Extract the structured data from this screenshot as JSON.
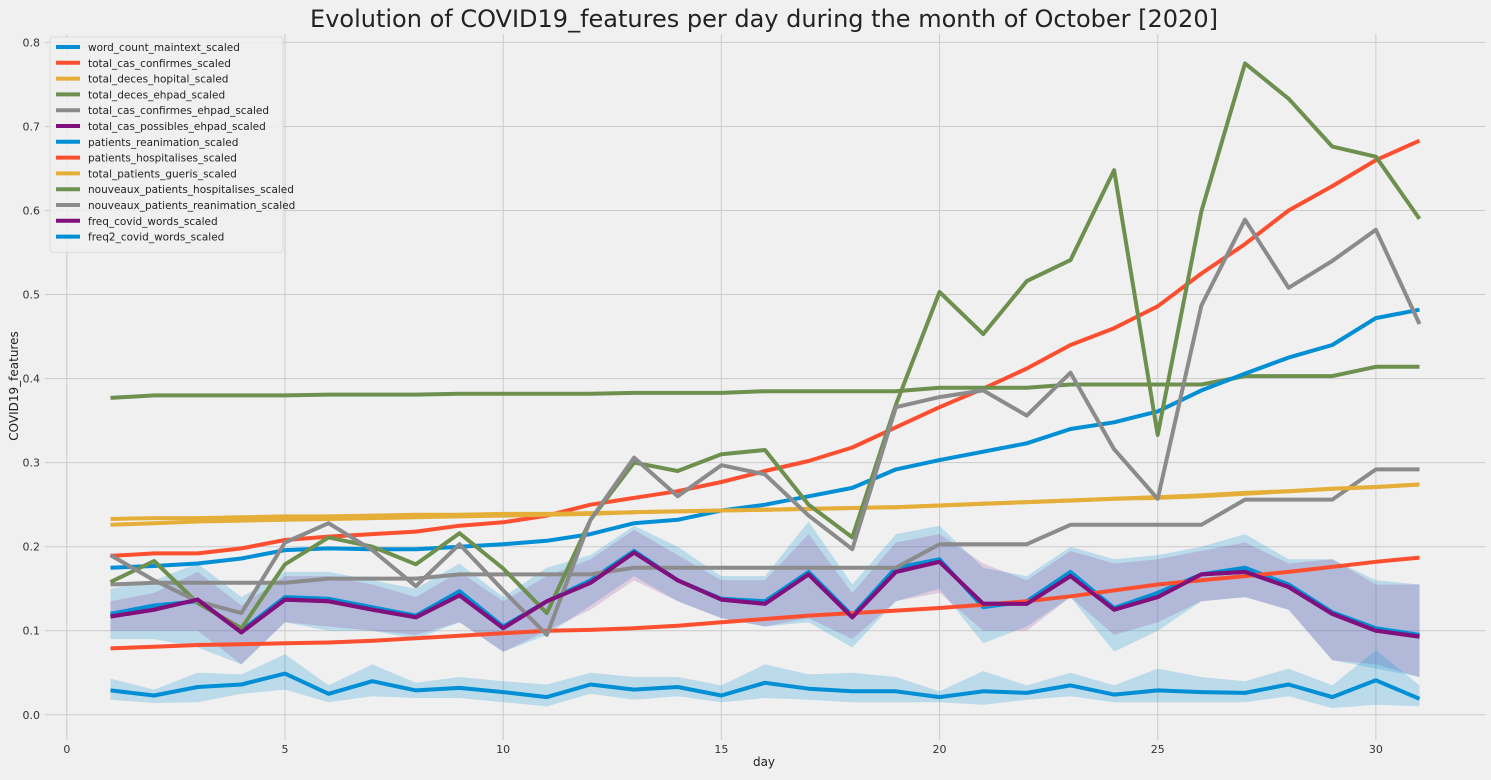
{
  "chart_data": {
    "type": "line",
    "title": "Evolution of COVID19_features per day during the month of October [2020]",
    "xlabel": "day",
    "ylabel": "COVID19_features",
    "xlim": [
      -0.5,
      32.5
    ],
    "ylim": [
      -0.03,
      0.81
    ],
    "x_ticks": [
      0,
      5,
      10,
      15,
      20,
      25,
      30
    ],
    "y_ticks": [
      0.0,
      0.1,
      0.2,
      0.3,
      0.4,
      0.5,
      0.6,
      0.7,
      0.8
    ],
    "x_tick_labels": [
      "0",
      "5",
      "10",
      "15",
      "20",
      "25",
      "30"
    ],
    "y_tick_labels": [
      "0.0",
      "0.1",
      "0.2",
      "0.3",
      "0.4",
      "0.5",
      "0.6",
      "0.7",
      "0.8"
    ],
    "grid": true,
    "legend_position": "top-left",
    "x": [
      1,
      2,
      3,
      4,
      5,
      6,
      7,
      8,
      9,
      10,
      11,
      12,
      13,
      14,
      15,
      16,
      17,
      18,
      19,
      20,
      21,
      22,
      23,
      24,
      25,
      26,
      27,
      28,
      29,
      30,
      31
    ],
    "series": [
      {
        "name": "word_count_maintext_scaled",
        "color": "#008fd5",
        "values": [
          0.12,
          0.13,
          0.135,
          0.1,
          0.14,
          0.138,
          0.128,
          0.118,
          0.147,
          0.105,
          0.135,
          0.16,
          0.195,
          0.16,
          0.138,
          0.135,
          0.17,
          0.118,
          0.175,
          0.185,
          0.128,
          0.135,
          0.17,
          0.127,
          0.145,
          0.167,
          0.175,
          0.155,
          0.122,
          0.103,
          0.095
        ],
        "band": {
          "lower": [
            0.09,
            0.09,
            0.08,
            0.06,
            0.11,
            0.1,
            0.1,
            0.09,
            0.11,
            0.075,
            0.095,
            0.13,
            0.165,
            0.135,
            0.115,
            0.105,
            0.11,
            0.08,
            0.135,
            0.15,
            0.085,
            0.105,
            0.14,
            0.075,
            0.1,
            0.135,
            0.14,
            0.125,
            0.065,
            0.055,
            0.045
          ],
          "upper": [
            0.15,
            0.16,
            0.18,
            0.14,
            0.17,
            0.17,
            0.16,
            0.15,
            0.18,
            0.14,
            0.175,
            0.19,
            0.225,
            0.2,
            0.165,
            0.165,
            0.23,
            0.155,
            0.215,
            0.225,
            0.175,
            0.165,
            0.2,
            0.185,
            0.19,
            0.2,
            0.215,
            0.185,
            0.185,
            0.16,
            0.155
          ],
          "color": "rgba(0,143,213,0.22)"
        }
      },
      {
        "name": "total_cas_confirmes_scaled",
        "color": "#fc4f30",
        "values": [
          0.189,
          0.192,
          0.192,
          0.198,
          0.208,
          0.212,
          0.215,
          0.218,
          0.225,
          0.229,
          0.237,
          0.25,
          0.258,
          0.266,
          0.277,
          0.29,
          0.302,
          0.318,
          0.342,
          0.366,
          0.388,
          0.412,
          0.44,
          0.46,
          0.486,
          0.525,
          0.56,
          0.6,
          0.629,
          0.66,
          0.683
        ]
      },
      {
        "name": "total_deces_hopital_scaled",
        "color": "#e5ae38",
        "values": [
          0.226,
          0.228,
          0.23,
          0.231,
          0.232,
          0.233,
          0.234,
          0.235,
          0.236,
          0.237,
          0.238,
          0.239,
          0.241,
          0.242,
          0.243,
          0.244,
          0.245,
          0.246,
          0.247,
          0.249,
          0.251,
          0.253,
          0.255,
          0.257,
          0.258,
          0.26,
          0.263,
          0.266,
          0.269,
          0.271,
          0.274
        ]
      },
      {
        "name": "total_deces_ehpad_scaled",
        "color": "#6d904f",
        "values": [
          0.377,
          0.38,
          0.38,
          0.38,
          0.38,
          0.381,
          0.381,
          0.381,
          0.382,
          0.382,
          0.382,
          0.382,
          0.383,
          0.383,
          0.383,
          0.385,
          0.385,
          0.385,
          0.385,
          0.389,
          0.389,
          0.389,
          0.393,
          0.393,
          0.393,
          0.393,
          0.403,
          0.403,
          0.403,
          0.414,
          0.414
        ]
      },
      {
        "name": "total_cas_confirmes_ehpad_scaled",
        "color": "#8b8b8b",
        "values": [
          0.155,
          0.157,
          0.157,
          0.157,
          0.157,
          0.162,
          0.162,
          0.162,
          0.167,
          0.167,
          0.167,
          0.167,
          0.175,
          0.175,
          0.175,
          0.175,
          0.175,
          0.175,
          0.175,
          0.203,
          0.203,
          0.203,
          0.226,
          0.226,
          0.226,
          0.226,
          0.256,
          0.256,
          0.256,
          0.292,
          0.292
        ]
      },
      {
        "name": "total_cas_possibles_ehpad_scaled",
        "color": "#810f7c",
        "values": [
          0.117,
          0.125,
          0.137,
          0.098,
          0.137,
          0.135,
          0.125,
          0.116,
          0.142,
          0.103,
          0.135,
          0.157,
          0.193,
          0.16,
          0.137,
          0.132,
          0.167,
          0.116,
          0.17,
          0.182,
          0.132,
          0.132,
          0.165,
          0.125,
          0.14,
          0.167,
          0.17,
          0.152,
          0.12,
          0.1,
          0.093
        ],
        "band": {
          "lower": [
            0.1,
            0.1,
            0.1,
            0.06,
            0.11,
            0.105,
            0.1,
            0.095,
            0.11,
            0.075,
            0.1,
            0.125,
            0.16,
            0.135,
            0.115,
            0.105,
            0.115,
            0.09,
            0.135,
            0.145,
            0.1,
            0.1,
            0.14,
            0.095,
            0.11,
            0.135,
            0.14,
            0.125,
            0.065,
            0.06,
            0.045
          ],
          "upper": [
            0.135,
            0.145,
            0.17,
            0.13,
            0.165,
            0.165,
            0.155,
            0.14,
            0.17,
            0.135,
            0.165,
            0.185,
            0.22,
            0.19,
            0.16,
            0.16,
            0.215,
            0.145,
            0.205,
            0.215,
            0.18,
            0.16,
            0.195,
            0.18,
            0.185,
            0.195,
            0.205,
            0.18,
            0.185,
            0.155,
            0.155
          ],
          "color": "rgba(129,15,124,0.16)"
        }
      },
      {
        "name": "patients_reanimation_scaled",
        "color": "#008fd5",
        "values": [
          0.175,
          0.177,
          0.18,
          0.186,
          0.196,
          0.198,
          0.197,
          0.197,
          0.2,
          0.203,
          0.207,
          0.215,
          0.228,
          0.232,
          0.243,
          0.25,
          0.26,
          0.27,
          0.292,
          0.303,
          0.313,
          0.323,
          0.34,
          0.348,
          0.361,
          0.386,
          0.406,
          0.425,
          0.44,
          0.472,
          0.482
        ]
      },
      {
        "name": "patients_hospitalises_scaled",
        "color": "#fc4f30",
        "values": [
          0.079,
          0.081,
          0.083,
          0.084,
          0.085,
          0.086,
          0.088,
          0.091,
          0.094,
          0.097,
          0.1,
          0.101,
          0.103,
          0.106,
          0.11,
          0.114,
          0.118,
          0.121,
          0.124,
          0.127,
          0.131,
          0.135,
          0.141,
          0.148,
          0.155,
          0.16,
          0.165,
          0.17,
          0.176,
          0.182,
          0.187
        ]
      },
      {
        "name": "total_patients_gueris_scaled",
        "color": "#e5ae38",
        "values": [
          0.233,
          0.234,
          0.234,
          0.235,
          0.236,
          0.236,
          0.237,
          0.238,
          0.238,
          0.239,
          0.239,
          0.24,
          0.241,
          0.242,
          0.243,
          0.244,
          0.245,
          0.246,
          0.247,
          0.249,
          0.251,
          0.253,
          0.255,
          0.257,
          0.259,
          0.261,
          0.264,
          0.266,
          0.269,
          0.271,
          0.274
        ]
      },
      {
        "name": "nouveaux_patients_hospitalises_scaled",
        "color": "#6d904f",
        "values": [
          0.158,
          0.183,
          0.133,
          0.103,
          0.179,
          0.211,
          0.2,
          0.179,
          0.216,
          0.174,
          0.121,
          0.232,
          0.3,
          0.29,
          0.31,
          0.315,
          0.25,
          0.211,
          0.369,
          0.503,
          0.453,
          0.516,
          0.541,
          0.648,
          0.333,
          0.599,
          0.775,
          0.733,
          0.676,
          0.664,
          0.59
        ]
      },
      {
        "name": "nouveaux_patients_reanimation_scaled",
        "color": "#8b8b8b",
        "values": [
          0.19,
          0.16,
          0.135,
          0.121,
          0.205,
          0.228,
          0.196,
          0.153,
          0.203,
          0.148,
          0.095,
          0.232,
          0.306,
          0.26,
          0.297,
          0.286,
          0.237,
          0.197,
          0.366,
          0.378,
          0.386,
          0.356,
          0.407,
          0.316,
          0.257,
          0.487,
          0.589,
          0.508,
          0.54,
          0.577,
          0.465
        ]
      },
      {
        "name": "freq_covid_words_scaled",
        "color": "#810f7c",
        "values": [
          0.117,
          0.125,
          0.137,
          0.098,
          0.137,
          0.135,
          0.125,
          0.116,
          0.142,
          0.103,
          0.135,
          0.157,
          0.193,
          0.16,
          0.137,
          0.132,
          0.167,
          0.116,
          0.17,
          0.182,
          0.132,
          0.132,
          0.165,
          0.125,
          0.14,
          0.167,
          0.17,
          0.152,
          0.12,
          0.1,
          0.093
        ]
      },
      {
        "name": "freq2_covid_words_scaled",
        "color": "#008fd5",
        "values": [
          0.029,
          0.023,
          0.033,
          0.036,
          0.049,
          0.025,
          0.04,
          0.029,
          0.032,
          0.027,
          0.021,
          0.036,
          0.03,
          0.033,
          0.023,
          0.038,
          0.031,
          0.028,
          0.028,
          0.021,
          0.028,
          0.026,
          0.035,
          0.024,
          0.029,
          0.027,
          0.026,
          0.036,
          0.021,
          0.041,
          0.019
        ],
        "band": {
          "lower": [
            0.018,
            0.014,
            0.015,
            0.025,
            0.03,
            0.015,
            0.022,
            0.02,
            0.02,
            0.015,
            0.01,
            0.025,
            0.018,
            0.022,
            0.015,
            0.02,
            0.018,
            0.015,
            0.015,
            0.015,
            0.012,
            0.018,
            0.022,
            0.015,
            0.015,
            0.015,
            0.015,
            0.022,
            0.008,
            0.012,
            0.01
          ],
          "upper": [
            0.043,
            0.03,
            0.05,
            0.048,
            0.072,
            0.035,
            0.06,
            0.038,
            0.045,
            0.04,
            0.036,
            0.05,
            0.045,
            0.045,
            0.035,
            0.06,
            0.048,
            0.05,
            0.045,
            0.028,
            0.052,
            0.035,
            0.05,
            0.035,
            0.055,
            0.045,
            0.04,
            0.055,
            0.035,
            0.077,
            0.035
          ],
          "color": "rgba(0,143,213,0.22)"
        }
      }
    ]
  }
}
